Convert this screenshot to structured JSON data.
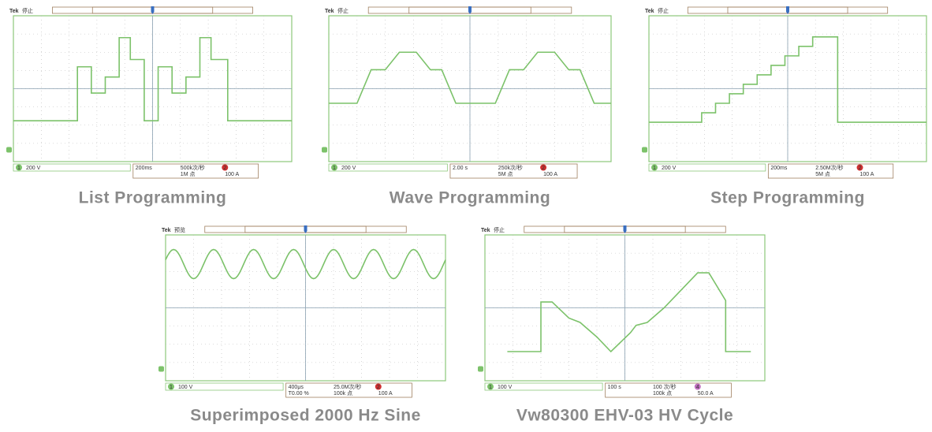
{
  "panels": [
    {
      "brand": "Tek",
      "status": "停止",
      "channel_number": "1",
      "channel": "200 V",
      "timebase": "200ms",
      "rate": "500k次/秒",
      "points": "1M 点",
      "trigger_channel": "2",
      "trigger": "100 A",
      "caption": "List Programming"
    },
    {
      "brand": "Tek",
      "status": "停止",
      "channel_number": "1",
      "channel": "200 V",
      "timebase": "2.00 s",
      "rate": "250k次/秒",
      "points": "5M 点",
      "trigger_channel": "2",
      "trigger": "100 A",
      "caption": "Wave Programming"
    },
    {
      "brand": "Tek",
      "status": "停止",
      "channel_number": "1",
      "channel": "200 V",
      "timebase": "200ms",
      "rate": "2.50M次/秒",
      "points": "5M 点",
      "trigger_channel": "2",
      "trigger": "100 A",
      "caption": "Step Programming"
    },
    {
      "brand": "Tek",
      "status": "预览",
      "channel_number": "1",
      "channel": "100 V",
      "timebase": "400μs",
      "position": "T0.00 %",
      "rate": "25.0M次/秒",
      "points": "100k 点",
      "trigger_channel": "2",
      "trigger": "100 A",
      "caption": "Superimposed 2000 Hz Sine"
    },
    {
      "brand": "Tek",
      "status": "停止",
      "channel_number": "1",
      "channel": "100 V",
      "timebase": "100 s",
      "rate": "100 次/秒",
      "points": "100k 点",
      "trigger_channel": "4",
      "trigger": "50.0 A",
      "caption": "Vw80300 EHV-03 HV Cycle"
    }
  ]
}
